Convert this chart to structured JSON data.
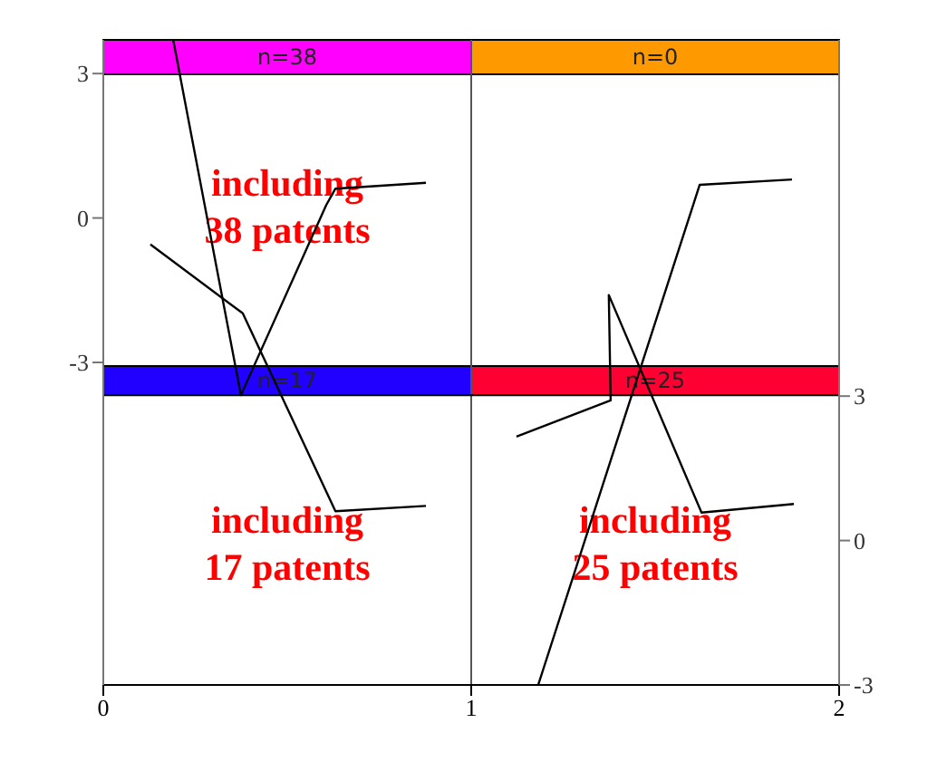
{
  "chart_data": {
    "type": "line",
    "x": [
      0.19,
      0.374,
      0.606,
      0.631,
      0.877
    ],
    "series": [
      {
        "color": "#000000",
        "values": [
          3.7,
          -3.68,
          0.27,
          0.61,
          0.73
        ]
      },
      {
        "color": "#000000",
        "x": [
          0.128,
          0.379,
          0.631,
          0.877
        ],
        "values": [
          -0.55,
          -1.98,
          -6.09,
          -5.98
        ]
      },
      {
        "color": "#000000",
        "axis": "y2",
        "x": [
          1.182,
          1.621,
          1.872
        ],
        "values": [
          -3.0,
          7.39,
          7.5
        ]
      },
      {
        "color": "#000000",
        "axis": "y2",
        "x": [
          1.123,
          1.379,
          1.374,
          1.626,
          1.877
        ],
        "values": [
          2.16,
          2.91,
          5.1,
          0.58,
          0.76
        ]
      }
    ],
    "xlim": [
      0,
      2
    ],
    "xticks": [
      0,
      1,
      2
    ],
    "ylim": [
      -9.7,
      3.7
    ],
    "yticks": [
      -3,
      0,
      3
    ],
    "y2lim": [
      -3,
      10.4
    ],
    "y2ticks": [
      -3,
      0,
      3
    ],
    "ref_lines": [
      {
        "axis": "x",
        "value": 1,
        "color": "#555555"
      },
      {
        "axis": "y",
        "value": -3.68,
        "color": "#000000"
      }
    ],
    "annotations": [
      "n=38",
      "n=0",
      "n=17",
      "n=25",
      "including 38 patents",
      "including 17 patents",
      "including 25 patents"
    ],
    "marker": "none",
    "line_style": "solid"
  }
}
